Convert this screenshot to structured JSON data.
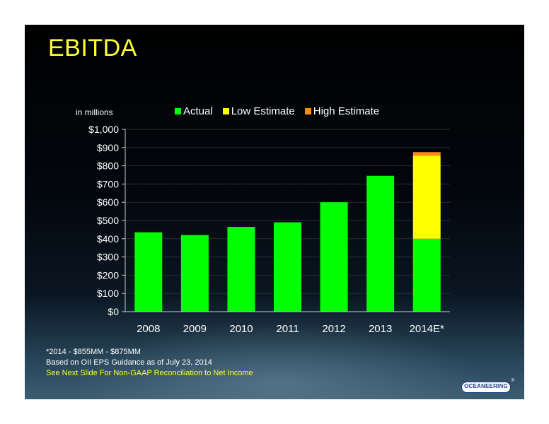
{
  "slide": {
    "title": "EBITDA",
    "units_label": "in millions",
    "footnotes": [
      "*2014 - $855MM - $875MM",
      "Based on OII EPS Guidance as of July 23, 2014",
      "See Next Slide For Non-GAAP Reconciliation to Net Income"
    ],
    "logo_text": "OCEANEERING",
    "logo_mark": "®"
  },
  "chart_data": {
    "type": "bar",
    "stacked": true,
    "categories": [
      "2008",
      "2009",
      "2010",
      "2011",
      "2012",
      "2013",
      "2014E*"
    ],
    "series": [
      {
        "name": "Actual",
        "color": "#00ff00",
        "values": [
          435,
          420,
          465,
          490,
          600,
          745,
          400
        ]
      },
      {
        "name": "Low Estimate",
        "color": "#ffff00",
        "values": [
          0,
          0,
          0,
          0,
          0,
          0,
          455
        ]
      },
      {
        "name": "High Estimate",
        "color": "#ff8c1a",
        "values": [
          0,
          0,
          0,
          0,
          0,
          0,
          20
        ]
      }
    ],
    "ylim": [
      0,
      1000
    ],
    "yticks": [
      0,
      100,
      200,
      300,
      400,
      500,
      600,
      700,
      800,
      900,
      1000
    ],
    "ytick_labels": [
      "$0",
      "$100",
      "$200",
      "$300",
      "$400",
      "$500",
      "$600",
      "$700",
      "$800",
      "$900",
      "$1,000"
    ],
    "grid": true,
    "legend_position": "top"
  }
}
